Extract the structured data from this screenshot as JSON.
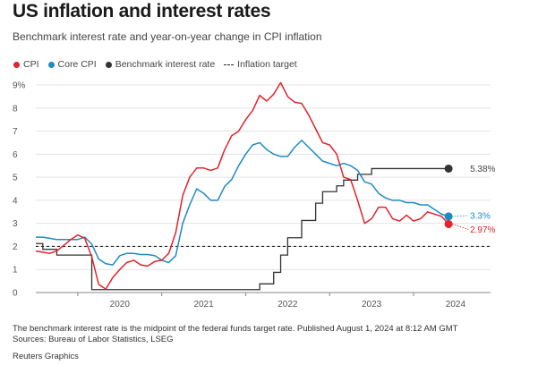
{
  "title": "US inflation and interest rates",
  "subtitle": "Benchmark interest rate and year-on-year change in CPI inflation",
  "legend": {
    "cpi": "CPI",
    "core_cpi": "Core CPI",
    "rate": "Benchmark interest rate",
    "target": "Inflation target"
  },
  "footnote": "The benchmark interest rate is the midpoint of the federal funds target rate. Published August 1, 2024 at 8:12 AM GMT",
  "sources": "Sources: Bureau of Labor Statistics, LSEG",
  "credit": "Reuters Graphics",
  "colors": {
    "cpi": "#e2232c",
    "core_cpi": "#1c8bc4",
    "rate": "#333333",
    "target": "#222222"
  },
  "chart_data": {
    "type": "line",
    "x_axis": {
      "ticks": [
        "2020",
        "2021",
        "2022",
        "2023",
        "2024"
      ],
      "range": [
        "2019-07",
        "2024-12"
      ]
    },
    "y_axis": {
      "range": [
        0,
        9
      ],
      "ticks": [
        "0",
        "1",
        "2",
        "3",
        "4",
        "5",
        "6",
        "7",
        "8",
        "9%"
      ]
    },
    "grid": true,
    "end_labels": {
      "rate": "5.38%",
      "core_cpi": "3.3%",
      "cpi": "2.97%"
    },
    "series": [
      {
        "name": "CPI",
        "key": "cpi",
        "color": "#e2232c",
        "points": [
          [
            "2019-07",
            1.8
          ],
          [
            "2019-08",
            1.75
          ],
          [
            "2019-09",
            1.7
          ],
          [
            "2019-10",
            1.8
          ],
          [
            "2019-11",
            2.05
          ],
          [
            "2019-12",
            2.3
          ],
          [
            "2020-01",
            2.5
          ],
          [
            "2020-02",
            2.35
          ],
          [
            "2020-03",
            1.55
          ],
          [
            "2020-04",
            0.35
          ],
          [
            "2020-05",
            0.15
          ],
          [
            "2020-06",
            0.65
          ],
          [
            "2020-07",
            1.0
          ],
          [
            "2020-08",
            1.3
          ],
          [
            "2020-09",
            1.4
          ],
          [
            "2020-10",
            1.2
          ],
          [
            "2020-11",
            1.15
          ],
          [
            "2020-12",
            1.35
          ],
          [
            "2021-01",
            1.4
          ],
          [
            "2021-02",
            1.7
          ],
          [
            "2021-03",
            2.6
          ],
          [
            "2021-04",
            4.2
          ],
          [
            "2021-05",
            5.0
          ],
          [
            "2021-06",
            5.4
          ],
          [
            "2021-07",
            5.4
          ],
          [
            "2021-08",
            5.3
          ],
          [
            "2021-09",
            5.4
          ],
          [
            "2021-10",
            6.2
          ],
          [
            "2021-11",
            6.8
          ],
          [
            "2021-12",
            7.0
          ],
          [
            "2022-01",
            7.5
          ],
          [
            "2022-02",
            7.9
          ],
          [
            "2022-03",
            8.55
          ],
          [
            "2022-04",
            8.3
          ],
          [
            "2022-05",
            8.6
          ],
          [
            "2022-06",
            9.1
          ],
          [
            "2022-07",
            8.5
          ],
          [
            "2022-08",
            8.25
          ],
          [
            "2022-09",
            8.2
          ],
          [
            "2022-10",
            7.7
          ],
          [
            "2022-11",
            7.1
          ],
          [
            "2022-12",
            6.5
          ],
          [
            "2023-01",
            6.4
          ],
          [
            "2023-02",
            6.0
          ],
          [
            "2023-03",
            5.0
          ],
          [
            "2023-04",
            4.9
          ],
          [
            "2023-05",
            4.0
          ],
          [
            "2023-06",
            3.0
          ],
          [
            "2023-07",
            3.2
          ],
          [
            "2023-08",
            3.7
          ],
          [
            "2023-09",
            3.7
          ],
          [
            "2023-10",
            3.2
          ],
          [
            "2023-11",
            3.1
          ],
          [
            "2023-12",
            3.35
          ],
          [
            "2024-01",
            3.1
          ],
          [
            "2024-02",
            3.2
          ],
          [
            "2024-03",
            3.5
          ],
          [
            "2024-04",
            3.4
          ],
          [
            "2024-05",
            3.3
          ],
          [
            "2024-06",
            2.97
          ]
        ]
      },
      {
        "name": "Core CPI",
        "key": "core_cpi",
        "color": "#1c8bc4",
        "points": [
          [
            "2019-07",
            2.4
          ],
          [
            "2019-08",
            2.4
          ],
          [
            "2019-09",
            2.35
          ],
          [
            "2019-10",
            2.3
          ],
          [
            "2019-11",
            2.3
          ],
          [
            "2019-12",
            2.3
          ],
          [
            "2020-01",
            2.3
          ],
          [
            "2020-02",
            2.4
          ],
          [
            "2020-03",
            2.1
          ],
          [
            "2020-04",
            1.45
          ],
          [
            "2020-05",
            1.25
          ],
          [
            "2020-06",
            1.2
          ],
          [
            "2020-07",
            1.6
          ],
          [
            "2020-08",
            1.7
          ],
          [
            "2020-09",
            1.7
          ],
          [
            "2020-10",
            1.65
          ],
          [
            "2020-11",
            1.65
          ],
          [
            "2020-12",
            1.6
          ],
          [
            "2021-01",
            1.4
          ],
          [
            "2021-02",
            1.3
          ],
          [
            "2021-03",
            1.6
          ],
          [
            "2021-04",
            3.0
          ],
          [
            "2021-05",
            3.8
          ],
          [
            "2021-06",
            4.5
          ],
          [
            "2021-07",
            4.3
          ],
          [
            "2021-08",
            4.0
          ],
          [
            "2021-09",
            4.0
          ],
          [
            "2021-10",
            4.6
          ],
          [
            "2021-11",
            4.9
          ],
          [
            "2021-12",
            5.5
          ],
          [
            "2022-01",
            6.0
          ],
          [
            "2022-02",
            6.4
          ],
          [
            "2022-03",
            6.5
          ],
          [
            "2022-04",
            6.2
          ],
          [
            "2022-05",
            6.0
          ],
          [
            "2022-06",
            5.9
          ],
          [
            "2022-07",
            5.9
          ],
          [
            "2022-08",
            6.3
          ],
          [
            "2022-09",
            6.6
          ],
          [
            "2022-10",
            6.3
          ],
          [
            "2022-11",
            6.0
          ],
          [
            "2022-12",
            5.7
          ],
          [
            "2023-01",
            5.6
          ],
          [
            "2023-02",
            5.5
          ],
          [
            "2023-03",
            5.6
          ],
          [
            "2023-04",
            5.5
          ],
          [
            "2023-05",
            5.3
          ],
          [
            "2023-06",
            4.8
          ],
          [
            "2023-07",
            4.7
          ],
          [
            "2023-08",
            4.3
          ],
          [
            "2023-09",
            4.1
          ],
          [
            "2023-10",
            4.0
          ],
          [
            "2023-11",
            4.0
          ],
          [
            "2023-12",
            3.9
          ],
          [
            "2024-01",
            3.9
          ],
          [
            "2024-02",
            3.8
          ],
          [
            "2024-03",
            3.8
          ],
          [
            "2024-04",
            3.6
          ],
          [
            "2024-05",
            3.4
          ],
          [
            "2024-06",
            3.3
          ]
        ]
      },
      {
        "name": "Benchmark interest rate",
        "key": "rate",
        "color": "#333333",
        "step": true,
        "points": [
          [
            "2019-07",
            2.125
          ],
          [
            "2019-08",
            1.875
          ],
          [
            "2019-09",
            1.875
          ],
          [
            "2019-10",
            1.625
          ],
          [
            "2020-03",
            1.125
          ],
          [
            "2020-03",
            0.125
          ],
          [
            "2022-03",
            0.375
          ],
          [
            "2022-05",
            0.875
          ],
          [
            "2022-06",
            1.625
          ],
          [
            "2022-07",
            2.375
          ],
          [
            "2022-09",
            3.125
          ],
          [
            "2022-11",
            3.875
          ],
          [
            "2022-12",
            4.375
          ],
          [
            "2023-02",
            4.625
          ],
          [
            "2023-03",
            4.875
          ],
          [
            "2023-05",
            5.125
          ],
          [
            "2023-07",
            5.375
          ],
          [
            "2024-06",
            5.375
          ]
        ]
      },
      {
        "name": "Inflation target",
        "key": "target",
        "value": 2,
        "dashed": true
      }
    ]
  }
}
